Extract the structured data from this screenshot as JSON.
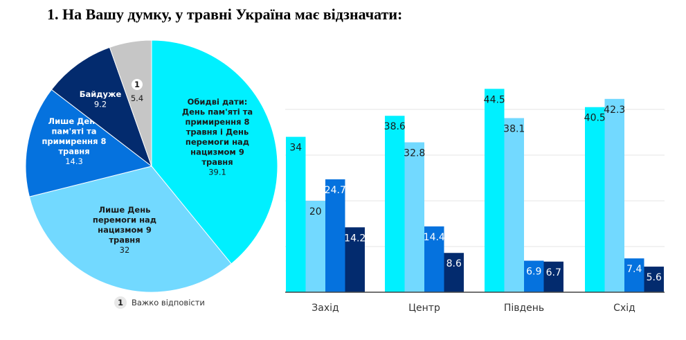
{
  "title": "1.   На Вашу думку, у травні Україна має відзначати:",
  "chart_data": [
    {
      "type": "pie",
      "slices": [
        {
          "label": [
            "Обидві дати:",
            "День пам'яті та",
            "примирення 8",
            "травня і День",
            "перемоги над",
            "нацизмом 9",
            "травня"
          ],
          "value": 39.1,
          "color": "#00f0ff",
          "text_color": "#1a1a1a"
        },
        {
          "label": [
            "Лише День",
            "перемоги над",
            "нацизмом 9",
            "травня"
          ],
          "value": 32,
          "color": "#72d9ff",
          "text_color": "#1a1a1a"
        },
        {
          "label": [
            "Лише День",
            "пам'яті та",
            "примирення 8",
            "травня"
          ],
          "value": 14.3,
          "color": "#0572de",
          "text_color": "#ffffff"
        },
        {
          "label": [
            "Байдуже"
          ],
          "value": 9.2,
          "color": "#032b6e",
          "text_color": "#ffffff"
        },
        {
          "label": [
            "1"
          ],
          "value": 5.4,
          "color": "#c6c6c6",
          "text_color": "#1a1a1a"
        }
      ],
      "legend": {
        "marker": "1",
        "text": "Важко відповісти"
      }
    },
    {
      "type": "bar",
      "categories": [
        "Захід",
        "Центр",
        "Південь",
        "Схід"
      ],
      "series": [
        {
          "values": [
            34,
            38.6,
            44.5,
            40.5
          ],
          "color": "#00f0ff",
          "label_color": "#1a1a1a"
        },
        {
          "values": [
            20,
            32.8,
            38.1,
            42.3
          ],
          "color": "#72d9ff",
          "label_color": "#1a1a1a"
        },
        {
          "values": [
            24.7,
            14.4,
            6.9,
            7.4
          ],
          "color": "#0572de",
          "label_color": "#ffffff"
        },
        {
          "values": [
            14.2,
            8.6,
            6.7,
            5.6
          ],
          "color": "#032b6e",
          "label_color": "#ffffff"
        }
      ],
      "ylim": [
        0,
        45
      ],
      "grid": true,
      "gridlines": [
        10,
        20,
        30,
        40
      ]
    }
  ]
}
